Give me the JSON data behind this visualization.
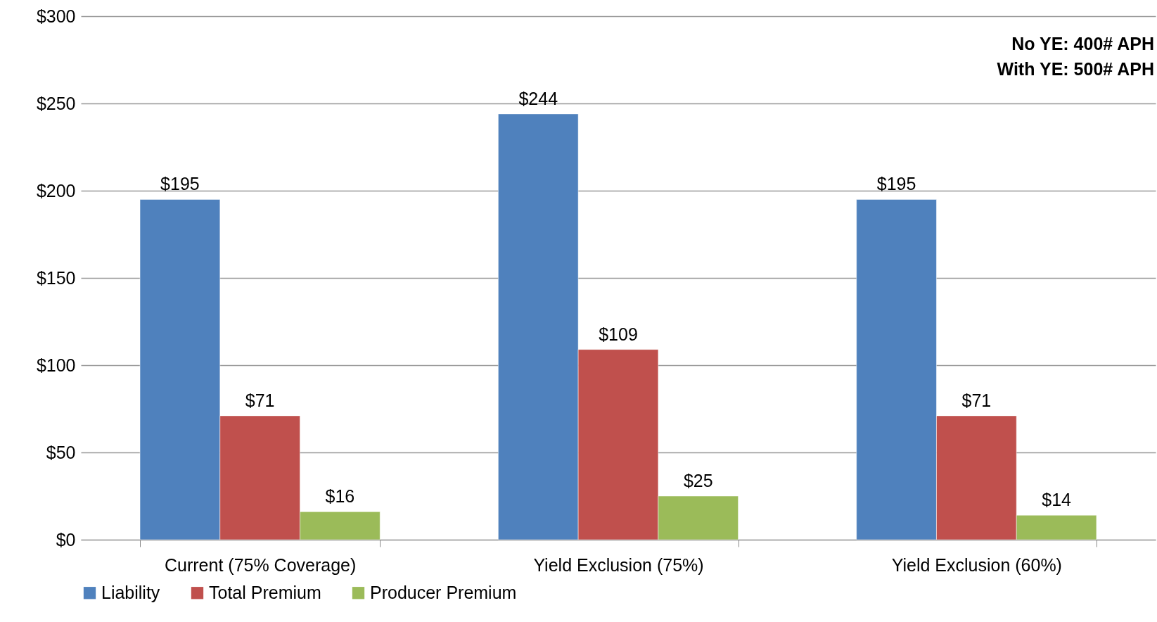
{
  "chart_data": {
    "type": "bar",
    "categories": [
      "Current (75% Coverage)",
      "Yield Exclusion (75%)",
      "Yield Exclusion (60%)"
    ],
    "series": [
      {
        "name": "Liability",
        "color": "#4f81bd",
        "values": [
          195,
          244,
          195
        ],
        "value_labels": [
          "$195",
          "$244",
          "$195"
        ]
      },
      {
        "name": "Total Premium",
        "color": "#c0504d",
        "values": [
          71,
          109,
          71
        ],
        "value_labels": [
          "$71",
          "$109",
          "$71"
        ]
      },
      {
        "name": "Producer Premium",
        "color": "#9bbb59",
        "values": [
          16,
          25,
          14
        ],
        "value_labels": [
          "$16",
          "$25",
          "$14"
        ]
      }
    ],
    "ylim": [
      0,
      300
    ],
    "yticks": [
      {
        "value": 0,
        "label": "$0"
      },
      {
        "value": 50,
        "label": "$50"
      },
      {
        "value": 100,
        "label": "$100"
      },
      {
        "value": 150,
        "label": "$150"
      },
      {
        "value": 200,
        "label": "$200"
      },
      {
        "value": 250,
        "label": "$250"
      },
      {
        "value": 300,
        "label": "$300"
      }
    ],
    "grid": "y",
    "legend": "bottom",
    "annotations": [
      "No YE:  400# APH",
      "With YE:  500# APH"
    ]
  }
}
